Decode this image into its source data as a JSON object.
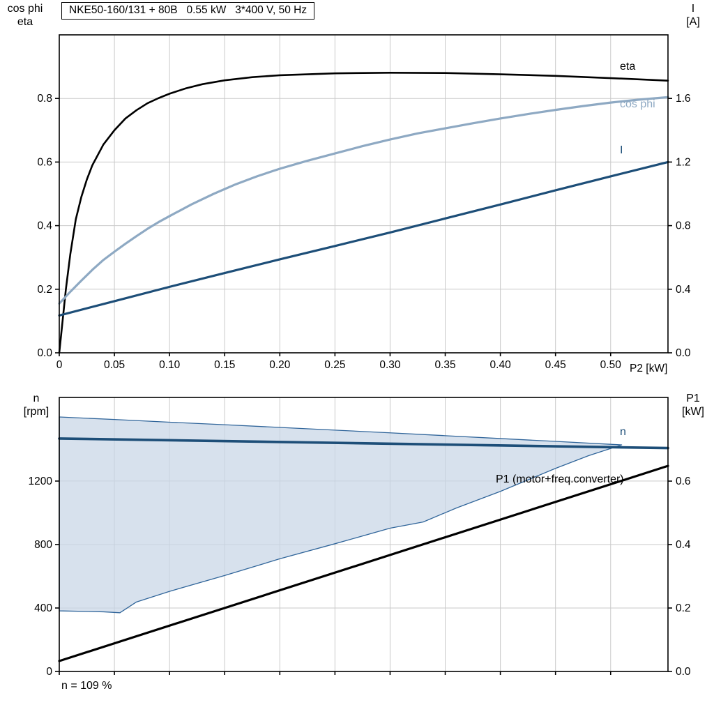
{
  "header": {
    "title_box": "NKE50-160/131 + 80B   0.55 kW   3*400 V, 50 Hz"
  },
  "colors": {
    "eta": "#000000",
    "cos_phi": "#8ea9c3",
    "current": "#1d4e78",
    "n_line": "#1d4e78",
    "band_fill": "#c7d6e6",
    "band_edge": "#30659a",
    "p1": "#000000",
    "grid": "#c9c9c9",
    "axis": "#000000"
  },
  "labels": {
    "top_left_line1": "cos phi",
    "top_left_line2": "eta",
    "top_right_line1": "I",
    "top_right_line2": "[A]",
    "x_axis_unit": "P2 [kW]",
    "bottom_left_line1": "n",
    "bottom_left_line2": "[rpm]",
    "bottom_right_line1": "P1",
    "bottom_right_line2": "[kW]",
    "eta_curve": "eta",
    "cos_phi_curve": "cos phi",
    "current_curve": "I",
    "n_curve": "n",
    "p1_curve": "P1 (motor+freq.converter)",
    "footer": "n = 109 %"
  },
  "chart_data": [
    {
      "type": "line",
      "title": "NKE50-160/131 + 80B   0.55 kW   3*400 V, 50 Hz",
      "xlabel": "P2 [kW]",
      "xlim": [
        0,
        0.552
      ],
      "x_ticks": [
        0,
        0.05,
        0.1,
        0.15,
        0.2,
        0.25,
        0.3,
        0.35,
        0.4,
        0.45,
        0.5
      ],
      "x_tick_labels": [
        "0",
        "0.05",
        "0.10",
        "0.15",
        "0.20",
        "0.25",
        "0.30",
        "0.35",
        "0.40",
        "0.45",
        "0.50"
      ],
      "left_axis": {
        "label": "cos phi / eta",
        "lim": [
          0,
          1.0
        ],
        "ticks": [
          0,
          0.2,
          0.4,
          0.6,
          0.8
        ],
        "tick_labels": [
          "0.0",
          "0.2",
          "0.4",
          "0.6",
          "0.8"
        ]
      },
      "right_axis": {
        "label": "I [A]",
        "lim": [
          0,
          2.0
        ],
        "ticks": [
          0,
          0.4,
          0.8,
          1.2,
          1.6
        ],
        "tick_labels": [
          "0.0",
          "0.4",
          "0.8",
          "1.2",
          "1.6"
        ]
      },
      "grid": true,
      "legend_position": "right-edge-labels",
      "series": [
        {
          "id": "eta",
          "name": "eta",
          "axis": "left",
          "color": "#000000",
          "width": 2.6,
          "points": [
            [
              0,
              0
            ],
            [
              0.003,
              0.1
            ],
            [
              0.006,
              0.2
            ],
            [
              0.01,
              0.31
            ],
            [
              0.015,
              0.42
            ],
            [
              0.02,
              0.49
            ],
            [
              0.025,
              0.545
            ],
            [
              0.03,
              0.59
            ],
            [
              0.04,
              0.655
            ],
            [
              0.05,
              0.7
            ],
            [
              0.06,
              0.737
            ],
            [
              0.07,
              0.763
            ],
            [
              0.08,
              0.785
            ],
            [
              0.09,
              0.801
            ],
            [
              0.1,
              0.815
            ],
            [
              0.115,
              0.832
            ],
            [
              0.13,
              0.845
            ],
            [
              0.15,
              0.857
            ],
            [
              0.175,
              0.867
            ],
            [
              0.2,
              0.873
            ],
            [
              0.25,
              0.879
            ],
            [
              0.3,
              0.881
            ],
            [
              0.35,
              0.88
            ],
            [
              0.4,
              0.876
            ],
            [
              0.45,
              0.871
            ],
            [
              0.5,
              0.864
            ],
            [
              0.552,
              0.856
            ]
          ]
        },
        {
          "id": "cos-phi",
          "name": "cos phi",
          "axis": "left",
          "color": "#8ea9c3",
          "width": 3.2,
          "points": [
            [
              0,
              0.155
            ],
            [
              0.01,
              0.192
            ],
            [
              0.02,
              0.227
            ],
            [
              0.03,
              0.261
            ],
            [
              0.04,
              0.292
            ],
            [
              0.05,
              0.318
            ],
            [
              0.06,
              0.343
            ],
            [
              0.07,
              0.367
            ],
            [
              0.08,
              0.39
            ],
            [
              0.09,
              0.411
            ],
            [
              0.1,
              0.43
            ],
            [
              0.12,
              0.467
            ],
            [
              0.14,
              0.5
            ],
            [
              0.16,
              0.53
            ],
            [
              0.18,
              0.556
            ],
            [
              0.2,
              0.579
            ],
            [
              0.225,
              0.604
            ],
            [
              0.25,
              0.627
            ],
            [
              0.275,
              0.65
            ],
            [
              0.3,
              0.671
            ],
            [
              0.325,
              0.69
            ],
            [
              0.35,
              0.706
            ],
            [
              0.375,
              0.722
            ],
            [
              0.4,
              0.737
            ],
            [
              0.425,
              0.751
            ],
            [
              0.45,
              0.764
            ],
            [
              0.475,
              0.776
            ],
            [
              0.5,
              0.787
            ],
            [
              0.525,
              0.796
            ],
            [
              0.552,
              0.804
            ]
          ]
        },
        {
          "id": "current",
          "name": "I",
          "axis": "right",
          "color": "#1d4e78",
          "width": 3.2,
          "points": [
            [
              0,
              0.235
            ],
            [
              0.05,
              0.325
            ],
            [
              0.1,
              0.415
            ],
            [
              0.15,
              0.502
            ],
            [
              0.2,
              0.588
            ],
            [
              0.25,
              0.672
            ],
            [
              0.3,
              0.757
            ],
            [
              0.35,
              0.845
            ],
            [
              0.4,
              0.933
            ],
            [
              0.45,
              1.022
            ],
            [
              0.5,
              1.11
            ],
            [
              0.552,
              1.2
            ]
          ]
        }
      ]
    },
    {
      "type": "line",
      "xlabel": "",
      "xlim": [
        0,
        0.552
      ],
      "x_ticks": [
        0,
        0.05,
        0.1,
        0.15,
        0.2,
        0.25,
        0.3,
        0.35,
        0.4,
        0.45,
        0.5
      ],
      "x_tick_labels": null,
      "left_axis": {
        "label": "n [rpm]",
        "lim": [
          0,
          1727
        ],
        "ticks": [
          0,
          400,
          800,
          1200
        ],
        "tick_labels": [
          "0",
          "400",
          "800",
          "1200"
        ]
      },
      "right_axis": {
        "label": "P1 [kW]",
        "lim": [
          0,
          0.8637
        ],
        "ticks": [
          0,
          0.2,
          0.4,
          0.6
        ],
        "tick_labels": [
          "0.0",
          "0.2",
          "0.4",
          "0.6"
        ]
      },
      "grid": true,
      "annotation": "n = 109 %",
      "band": {
        "name": "speed-control-range",
        "axis": "left",
        "fill": "#c7d6e6",
        "edge": "#30659a",
        "upper": [
          [
            0,
            1604
          ],
          [
            0.05,
            1588
          ],
          [
            0.1,
            1571
          ],
          [
            0.15,
            1555
          ],
          [
            0.2,
            1538
          ],
          [
            0.25,
            1521
          ],
          [
            0.3,
            1504
          ],
          [
            0.35,
            1486
          ],
          [
            0.4,
            1468
          ],
          [
            0.45,
            1450
          ],
          [
            0.51,
            1428
          ]
        ],
        "lower": [
          [
            0,
            382
          ],
          [
            0.04,
            376
          ],
          [
            0.055,
            370
          ],
          [
            0.07,
            438
          ],
          [
            0.1,
            505
          ],
          [
            0.15,
            605
          ],
          [
            0.2,
            710
          ],
          [
            0.25,
            805
          ],
          [
            0.3,
            903
          ],
          [
            0.33,
            942
          ],
          [
            0.36,
            1030
          ],
          [
            0.4,
            1135
          ],
          [
            0.45,
            1280
          ],
          [
            0.48,
            1360
          ],
          [
            0.51,
            1428
          ]
        ]
      },
      "series": [
        {
          "id": "n",
          "name": "n",
          "axis": "left",
          "color": "#1d4e78",
          "width": 3.6,
          "points": [
            [
              0,
              1468
            ],
            [
              0.552,
              1408
            ]
          ]
        },
        {
          "id": "p1",
          "name": "P1 (motor+freq.converter)",
          "axis": "right",
          "color": "#000000",
          "width": 3.2,
          "points": [
            [
              0,
              0.033
            ],
            [
              0.552,
              0.648
            ]
          ]
        }
      ]
    }
  ]
}
